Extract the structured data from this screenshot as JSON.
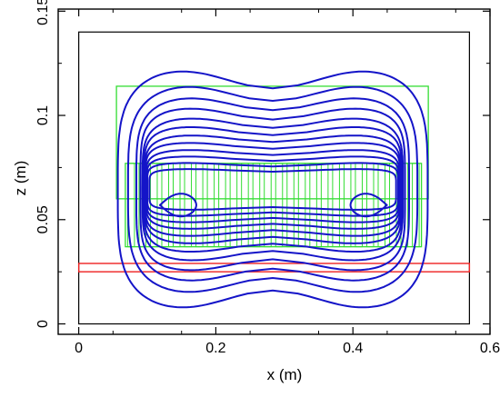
{
  "chart_data": {
    "type": "line",
    "xlabel": "x (m)",
    "ylabel": "z (m)",
    "xlim": [
      -0.03,
      0.6
    ],
    "ylim": [
      -0.005,
      0.151
    ],
    "x_ticks": [
      0,
      0.2,
      0.4,
      0.6
    ],
    "x_tick_labels": [
      "0",
      "0.2",
      "0.4",
      "0.6"
    ],
    "y_ticks": [
      0,
      0.05,
      0.1,
      0.15
    ],
    "y_tick_labels": [
      "0",
      "0.05",
      "0.1",
      "0.15"
    ],
    "grid": false,
    "colors": {
      "contour": "#1414c8",
      "green_outline": "#33dd33",
      "red_band": "#ee2222",
      "frame": "#000000"
    },
    "outer_box": {
      "x": [
        0,
        0.57
      ],
      "z": [
        0,
        0.14
      ]
    },
    "green_outer_rect": {
      "x": [
        0.055,
        0.51
      ],
      "z": [
        0.06,
        0.114
      ]
    },
    "green_inner_rect": {
      "x": [
        0.068,
        0.5
      ],
      "z": [
        0.037,
        0.077
      ]
    },
    "green_stripe_count": 26,
    "red_band": {
      "z": [
        0.025,
        0.029
      ],
      "x": [
        0,
        0.57
      ]
    },
    "contours": [
      {
        "a": 0.226,
        "b": 0.0605,
        "cx": 0.283,
        "cz": 0.0645,
        "pow": 4,
        "dip": 0.012
      },
      {
        "a": 0.211,
        "b": 0.0525,
        "cx": 0.283,
        "cz": 0.0645,
        "pow": 4,
        "dip": 0.01
      },
      {
        "a": 0.199,
        "b": 0.046,
        "cx": 0.283,
        "cz": 0.0645,
        "pow": 4.5,
        "dip": 0.008
      },
      {
        "a": 0.193,
        "b": 0.0405,
        "cx": 0.283,
        "cz": 0.0645,
        "pow": 5,
        "dip": 0.007
      },
      {
        "a": 0.19,
        "b": 0.0355,
        "cx": 0.283,
        "cz": 0.0645,
        "pow": 5,
        "dip": 0.006
      },
      {
        "a": 0.188,
        "b": 0.031,
        "cx": 0.283,
        "cz": 0.0645,
        "pow": 5.5,
        "dip": 0.005
      },
      {
        "a": 0.187,
        "b": 0.0268,
        "cx": 0.283,
        "cz": 0.0645,
        "pow": 5.5,
        "dip": 0.004
      },
      {
        "a": 0.186,
        "b": 0.023,
        "cx": 0.283,
        "cz": 0.0645,
        "pow": 6,
        "dip": 0.0035
      },
      {
        "a": 0.185,
        "b": 0.0195,
        "cx": 0.283,
        "cz": 0.0645,
        "pow": 6,
        "dip": 0.003
      },
      {
        "a": 0.184,
        "b": 0.0162,
        "cx": 0.283,
        "cz": 0.0645,
        "pow": 6.5,
        "dip": 0.0025
      },
      {
        "a": 0.183,
        "b": 0.013,
        "cx": 0.283,
        "cz": 0.0645,
        "pow": 7,
        "dip": 0.002
      },
      {
        "a": 0.18,
        "b": 0.01,
        "cx": 0.283,
        "cz": 0.0645,
        "pow": 7,
        "dip": 0.0015
      }
    ],
    "peak_contours": [
      {
        "cx": 0.137,
        "cz": 0.057,
        "w": 0.053,
        "h": 0.009,
        "dir": 1
      },
      {
        "cx": 0.431,
        "cz": 0.057,
        "w": 0.053,
        "h": 0.009,
        "dir": -1
      }
    ]
  }
}
